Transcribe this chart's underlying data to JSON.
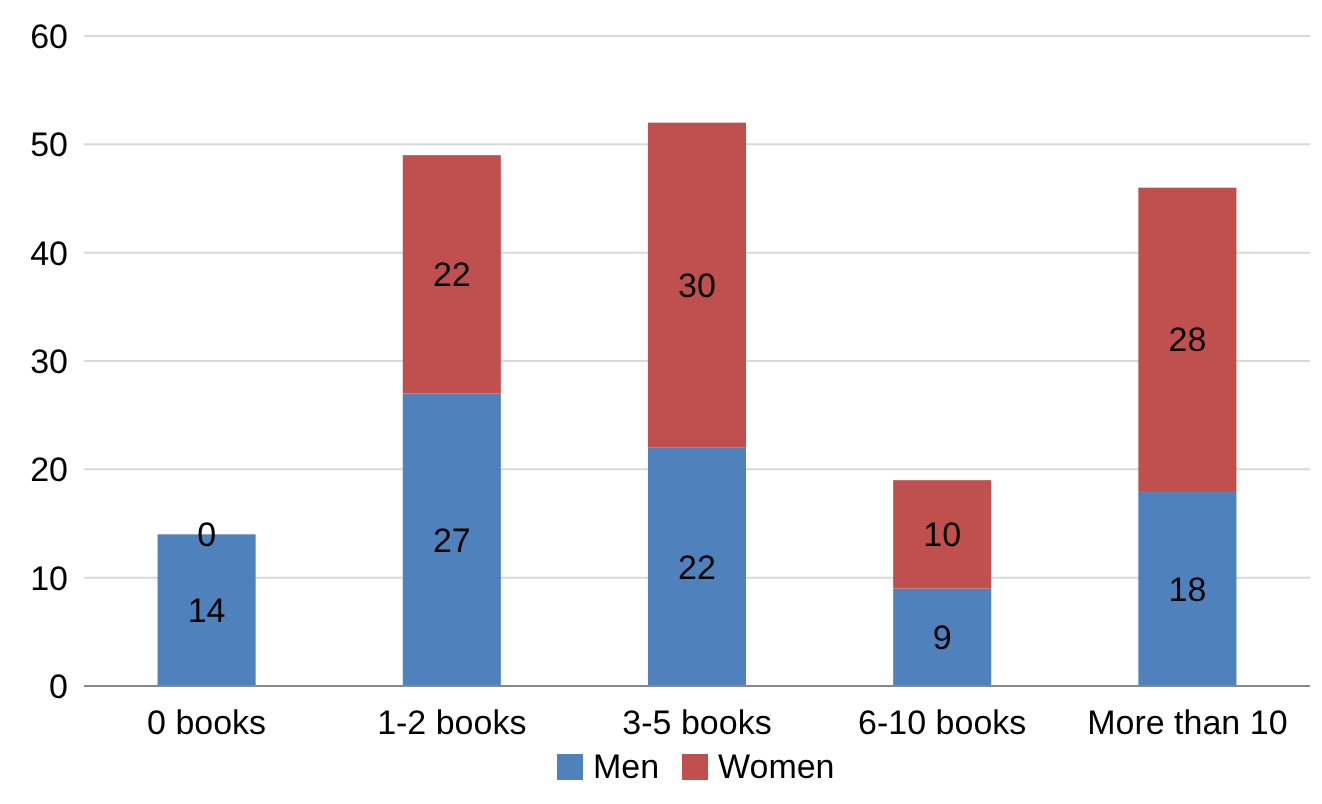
{
  "chart_data": {
    "type": "bar",
    "stacked": true,
    "categories": [
      "0 books",
      "1-2 books",
      "3-5 books",
      "6-10 books",
      "More than 10"
    ],
    "series": [
      {
        "name": "Men",
        "color": "#4f81bd",
        "values": [
          14,
          27,
          22,
          9,
          18
        ]
      },
      {
        "name": "Women",
        "color": "#c0504d",
        "values": [
          0,
          22,
          30,
          10,
          28
        ]
      }
    ],
    "ylim": [
      0,
      60
    ],
    "yticks": [
      0,
      10,
      20,
      30,
      40,
      50,
      60
    ],
    "grid": "y",
    "legend": "bottom",
    "data_labels": true
  }
}
